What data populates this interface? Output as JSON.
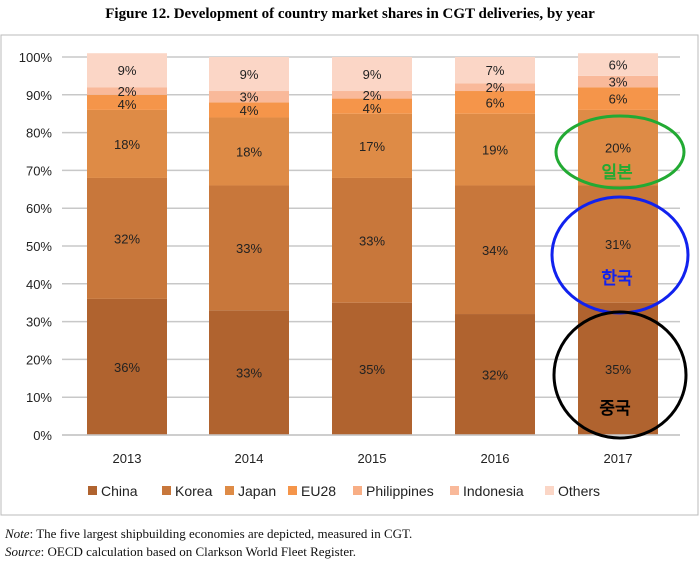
{
  "chart_data": {
    "type": "bar",
    "stacked": true,
    "title": "Figure 12. Development of country market shares in CGT deliveries, by year",
    "categories": [
      "2013",
      "2014",
      "2015",
      "2016",
      "2017"
    ],
    "ylim": [
      0,
      100
    ],
    "yticks": [
      "0%",
      "10%",
      "20%",
      "30%",
      "40%",
      "50%",
      "60%",
      "70%",
      "80%",
      "90%",
      "100%"
    ],
    "grid": true,
    "legend_position": "bottom",
    "series": [
      {
        "name": "China",
        "color": "#b0632f",
        "values": [
          36,
          33,
          35,
          32,
          35
        ]
      },
      {
        "name": "Korea",
        "color": "#c8773b",
        "values": [
          32,
          33,
          33,
          34,
          31
        ]
      },
      {
        "name": "Japan",
        "color": "#de8b46",
        "values": [
          18,
          18,
          17,
          19,
          20
        ]
      },
      {
        "name": "EU28",
        "color": "#f5954a",
        "values": [
          4,
          4,
          4,
          6,
          6
        ]
      },
      {
        "name": "Philippines",
        "color": "#f8ae85",
        "values": [
          0,
          0,
          0,
          0,
          0
        ]
      },
      {
        "name": "Indonesia",
        "color": "#f9b99a",
        "values": [
          2,
          3,
          2,
          2,
          3
        ]
      },
      {
        "name": "Others",
        "color": "#fbd6c6",
        "values": [
          9,
          9,
          9,
          7,
          6
        ]
      }
    ],
    "annotations": [
      {
        "text": "일본",
        "color": "#22aa33",
        "target": "Japan 2017"
      },
      {
        "text": "한국",
        "color": "#1122ee",
        "target": "Korea 2017"
      },
      {
        "text": "중국",
        "color": "#000000",
        "target": "China 2017"
      }
    ]
  },
  "note_label": "Note",
  "note_text": ": The five largest shipbuilding economies are depicted, measured in CGT.",
  "source_label": "Source",
  "source_text": ": OECD calculation based on Clarkson World Fleet Register."
}
